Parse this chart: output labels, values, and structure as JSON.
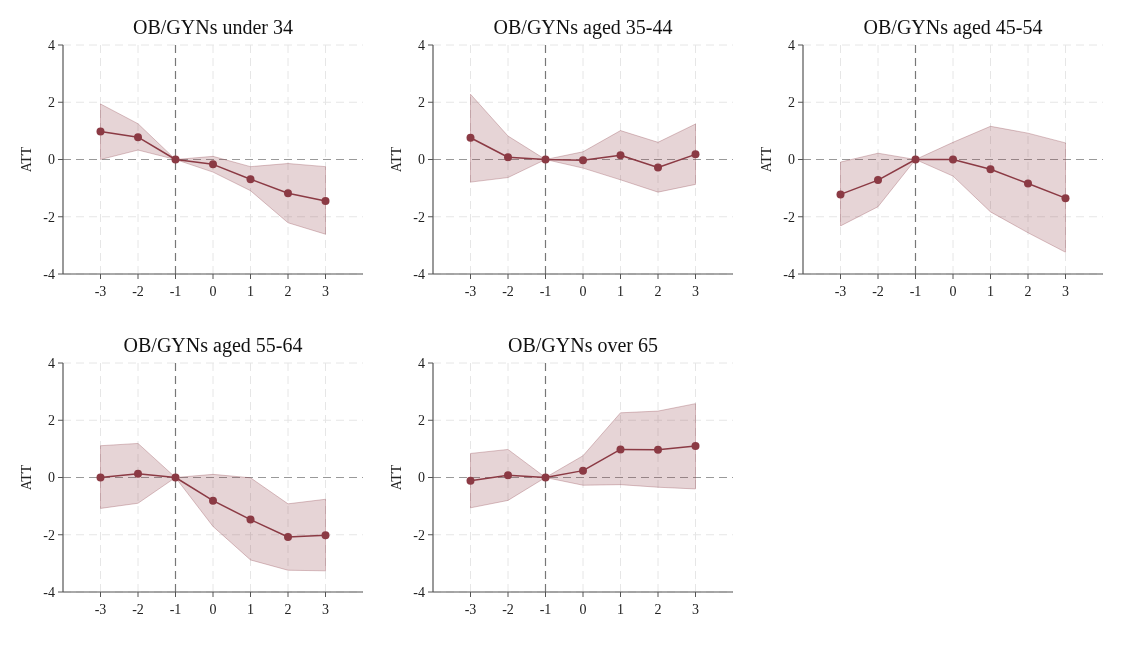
{
  "chart_data": [
    {
      "type": "line",
      "title": "OB/GYNs under 34",
      "ylabel": "ATT",
      "x": [
        -3,
        -2,
        -1,
        0,
        1,
        2,
        3
      ],
      "xlim": [
        -4,
        4
      ],
      "xticks": [
        -3,
        -2,
        -1,
        0,
        1,
        2,
        3
      ],
      "ylim": [
        -4,
        4
      ],
      "yticks": [
        -4,
        -2,
        0,
        2,
        4
      ],
      "grid": true,
      "marker": "circle",
      "series": [
        {
          "color": "#8b3a44",
          "values": [
            0.98,
            0.78,
            0,
            -0.17,
            -0.69,
            -1.18,
            -1.45
          ],
          "lower": [
            0.0,
            0.33,
            0,
            -0.44,
            -1.09,
            -2.21,
            -2.61
          ],
          "upper": [
            1.94,
            1.25,
            0,
            0.11,
            -0.25,
            -0.14,
            -0.25
          ]
        }
      ],
      "ref_lines": [
        {
          "axis": "x",
          "value": -1,
          "color": "#777777",
          "line_style": "dashed"
        },
        {
          "axis": "y",
          "value": 0,
          "color": "#999999",
          "line_style": "dashed"
        }
      ]
    },
    {
      "type": "line",
      "title": "OB/GYNs aged 35-44",
      "ylabel": "ATT",
      "x": [
        -3,
        -2,
        -1,
        0,
        1,
        2,
        3
      ],
      "xlim": [
        -4,
        4
      ],
      "xticks": [
        -3,
        -2,
        -1,
        0,
        1,
        2,
        3
      ],
      "ylim": [
        -4,
        4
      ],
      "yticks": [
        -4,
        -2,
        0,
        2,
        4
      ],
      "grid": true,
      "marker": "circle",
      "series": [
        {
          "color": "#8b3a44",
          "values": [
            0.76,
            0.08,
            0,
            -0.03,
            0.15,
            -0.28,
            0.18
          ],
          "lower": [
            -0.79,
            -0.63,
            0,
            -0.3,
            -0.71,
            -1.14,
            -0.87
          ],
          "upper": [
            2.28,
            0.82,
            0,
            0.27,
            1.01,
            0.6,
            1.24
          ]
        }
      ],
      "ref_lines": [
        {
          "axis": "x",
          "value": -1,
          "color": "#777777",
          "line_style": "dashed"
        },
        {
          "axis": "y",
          "value": 0,
          "color": "#999999",
          "line_style": "dashed"
        }
      ]
    },
    {
      "type": "line",
      "title": "OB/GYNs aged 45-54",
      "ylabel": "ATT",
      "x": [
        -3,
        -2,
        -1,
        0,
        1,
        2,
        3
      ],
      "xlim": [
        -4,
        4
      ],
      "xticks": [
        -3,
        -2,
        -1,
        0,
        1,
        2,
        3
      ],
      "ylim": [
        -4,
        4
      ],
      "yticks": [
        -4,
        -2,
        0,
        2,
        4
      ],
      "grid": true,
      "marker": "circle",
      "series": [
        {
          "color": "#8b3a44",
          "values": [
            -1.22,
            -0.72,
            0,
            0,
            -0.34,
            -0.84,
            -1.35
          ],
          "lower": [
            -2.32,
            -1.65,
            0,
            -0.58,
            -1.83,
            -2.56,
            -3.24
          ],
          "upper": [
            -0.09,
            0.22,
            0,
            0.6,
            1.16,
            0.92,
            0.58
          ]
        }
      ],
      "ref_lines": [
        {
          "axis": "x",
          "value": -1,
          "color": "#777777",
          "line_style": "dashed"
        },
        {
          "axis": "y",
          "value": 0,
          "color": "#999999",
          "line_style": "dashed"
        }
      ]
    },
    {
      "type": "line",
      "title": "OB/GYNs aged 55-64",
      "ylabel": "ATT",
      "x": [
        -3,
        -2,
        -1,
        0,
        1,
        2,
        3
      ],
      "xlim": [
        -4,
        4
      ],
      "xticks": [
        -3,
        -2,
        -1,
        0,
        1,
        2,
        3
      ],
      "ylim": [
        -4,
        4
      ],
      "yticks": [
        -4,
        -2,
        0,
        2,
        4
      ],
      "grid": true,
      "marker": "circle",
      "series": [
        {
          "color": "#8b3a44",
          "values": [
            0,
            0.13,
            0,
            -0.81,
            -1.47,
            -2.08,
            -2.02
          ],
          "lower": [
            -1.08,
            -0.9,
            0,
            -1.71,
            -2.88,
            -3.24,
            -3.26
          ],
          "upper": [
            1.11,
            1.19,
            0,
            0.11,
            -0.01,
            -0.92,
            -0.76
          ]
        }
      ],
      "ref_lines": [
        {
          "axis": "x",
          "value": -1,
          "color": "#777777",
          "line_style": "dashed"
        },
        {
          "axis": "y",
          "value": 0,
          "color": "#999999",
          "line_style": "dashed"
        }
      ]
    },
    {
      "type": "line",
      "title": "OB/GYNs over 65",
      "ylabel": "ATT",
      "x": [
        -3,
        -2,
        -1,
        0,
        1,
        2,
        3
      ],
      "xlim": [
        -4,
        4
      ],
      "xticks": [
        -3,
        -2,
        -1,
        0,
        1,
        2,
        3
      ],
      "ylim": [
        -4,
        4
      ],
      "yticks": [
        -4,
        -2,
        0,
        2,
        4
      ],
      "grid": true,
      "marker": "circle",
      "series": [
        {
          "color": "#8b3a44",
          "values": [
            -0.11,
            0.08,
            0,
            0.24,
            0.98,
            0.97,
            1.1
          ],
          "lower": [
            -1.06,
            -0.8,
            0,
            -0.27,
            -0.25,
            -0.34,
            -0.4
          ],
          "upper": [
            0.84,
            0.98,
            0,
            0.76,
            2.26,
            2.32,
            2.58
          ]
        }
      ],
      "ref_lines": [
        {
          "axis": "x",
          "value": -1,
          "color": "#777777",
          "line_style": "dashed"
        },
        {
          "axis": "y",
          "value": 0,
          "color": "#999999",
          "line_style": "dashed"
        }
      ]
    }
  ]
}
